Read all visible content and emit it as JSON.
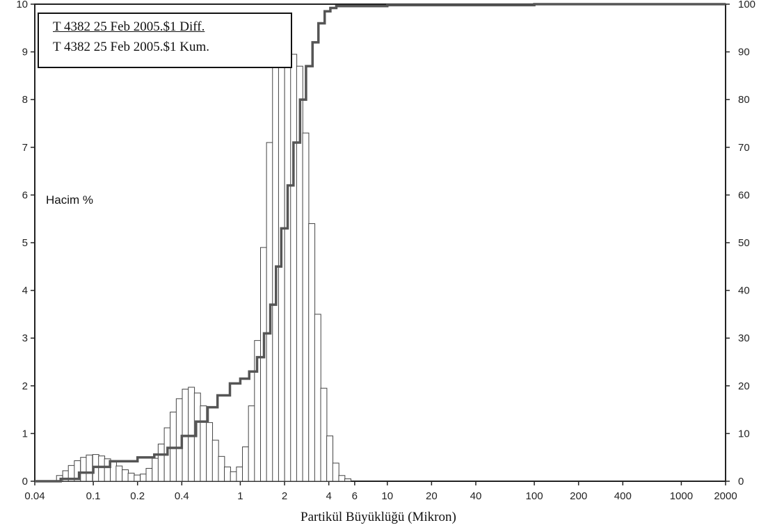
{
  "chart_data": {
    "type": "bar",
    "title": "",
    "xlabel": "Partikül Büyüklüğü (Mikron)",
    "ylabel": "Hacim %",
    "x_scale": "log",
    "xlim": [
      0.04,
      2000
    ],
    "ylim": [
      0,
      10
    ],
    "y2lim": [
      0,
      100
    ],
    "grid": false,
    "legend_position": "top-left",
    "x_ticks": [
      "0.04",
      "0.1",
      "0.2",
      "0.4",
      "1",
      "2",
      "4",
      "6",
      "10",
      "20",
      "40",
      "100",
      "200",
      "400",
      "1000",
      "2000"
    ],
    "y_ticks": [
      "0",
      "1",
      "2",
      "3",
      "4",
      "5",
      "6",
      "7",
      "8",
      "9",
      "10"
    ],
    "y2_ticks": [
      "0",
      "10",
      "20",
      "30",
      "40",
      "50",
      "60",
      "70",
      "80",
      "90",
      "100"
    ],
    "legend": [
      "T 4382 25 Feb 2005.$1 Diff.",
      "T 4382 25 Feb 2005.$1 Kum."
    ],
    "series": [
      {
        "name": "T 4382 25 Feb 2005.$1 Diff.",
        "kind": "histogram",
        "axis": "left",
        "bins": [
          {
            "x": 0.059,
            "y": 0.12
          },
          {
            "x": 0.065,
            "y": 0.22
          },
          {
            "x": 0.071,
            "y": 0.33
          },
          {
            "x": 0.078,
            "y": 0.43
          },
          {
            "x": 0.086,
            "y": 0.5
          },
          {
            "x": 0.094,
            "y": 0.55
          },
          {
            "x": 0.104,
            "y": 0.56
          },
          {
            "x": 0.114,
            "y": 0.53
          },
          {
            "x": 0.125,
            "y": 0.47
          },
          {
            "x": 0.137,
            "y": 0.4
          },
          {
            "x": 0.15,
            "y": 0.32
          },
          {
            "x": 0.165,
            "y": 0.24
          },
          {
            "x": 0.181,
            "y": 0.17
          },
          {
            "x": 0.199,
            "y": 0.13
          },
          {
            "x": 0.219,
            "y": 0.15
          },
          {
            "x": 0.24,
            "y": 0.27
          },
          {
            "x": 0.264,
            "y": 0.48
          },
          {
            "x": 0.29,
            "y": 0.78
          },
          {
            "x": 0.319,
            "y": 1.12
          },
          {
            "x": 0.35,
            "y": 1.45
          },
          {
            "x": 0.385,
            "y": 1.73
          },
          {
            "x": 0.423,
            "y": 1.93
          },
          {
            "x": 0.465,
            "y": 1.97
          },
          {
            "x": 0.511,
            "y": 1.85
          },
          {
            "x": 0.561,
            "y": 1.58
          },
          {
            "x": 0.617,
            "y": 1.23
          },
          {
            "x": 0.678,
            "y": 0.86
          },
          {
            "x": 0.745,
            "y": 0.52
          },
          {
            "x": 0.818,
            "y": 0.3
          },
          {
            "x": 0.899,
            "y": 0.2
          },
          {
            "x": 0.988,
            "y": 0.3
          },
          {
            "x": 1.086,
            "y": 0.72
          },
          {
            "x": 1.193,
            "y": 1.58
          },
          {
            "x": 1.311,
            "y": 2.95
          },
          {
            "x": 1.441,
            "y": 4.9
          },
          {
            "x": 1.583,
            "y": 7.1
          },
          {
            "x": 1.739,
            "y": 8.8
          },
          {
            "x": 1.911,
            "y": 9.0
          },
          {
            "x": 2.101,
            "y": 9.0
          },
          {
            "x": 2.308,
            "y": 8.95
          },
          {
            "x": 2.536,
            "y": 8.7
          },
          {
            "x": 2.787,
            "y": 7.3
          },
          {
            "x": 3.063,
            "y": 5.4
          },
          {
            "x": 3.365,
            "y": 3.5
          },
          {
            "x": 3.698,
            "y": 1.95
          },
          {
            "x": 4.063,
            "y": 0.95
          },
          {
            "x": 4.465,
            "y": 0.38
          },
          {
            "x": 4.906,
            "y": 0.12
          },
          {
            "x": 5.391,
            "y": 0.05
          }
        ]
      },
      {
        "name": "T 4382 25 Feb 2005.$1 Kum.",
        "kind": "cumulative",
        "axis": "right",
        "points": [
          {
            "x": 0.04,
            "y": 0
          },
          {
            "x": 0.06,
            "y": 0.5
          },
          {
            "x": 0.08,
            "y": 1.8
          },
          {
            "x": 0.1,
            "y": 3.0
          },
          {
            "x": 0.13,
            "y": 4.2
          },
          {
            "x": 0.2,
            "y": 5.0
          },
          {
            "x": 0.26,
            "y": 5.6
          },
          {
            "x": 0.32,
            "y": 7.0
          },
          {
            "x": 0.4,
            "y": 9.5
          },
          {
            "x": 0.5,
            "y": 12.5
          },
          {
            "x": 0.6,
            "y": 15.5
          },
          {
            "x": 0.7,
            "y": 18.0
          },
          {
            "x": 0.85,
            "y": 20.5
          },
          {
            "x": 1.0,
            "y": 21.5
          },
          {
            "x": 1.15,
            "y": 23.0
          },
          {
            "x": 1.3,
            "y": 26.0
          },
          {
            "x": 1.45,
            "y": 31.0
          },
          {
            "x": 1.6,
            "y": 37.0
          },
          {
            "x": 1.75,
            "y": 45.0
          },
          {
            "x": 1.9,
            "y": 53.0
          },
          {
            "x": 2.1,
            "y": 62.0
          },
          {
            "x": 2.3,
            "y": 71.0
          },
          {
            "x": 2.55,
            "y": 80.0
          },
          {
            "x": 2.8,
            "y": 87.0
          },
          {
            "x": 3.1,
            "y": 92.0
          },
          {
            "x": 3.4,
            "y": 96.0
          },
          {
            "x": 3.75,
            "y": 98.5
          },
          {
            "x": 4.1,
            "y": 99.2
          },
          {
            "x": 4.5,
            "y": 99.6
          },
          {
            "x": 10,
            "y": 99.8
          },
          {
            "x": 100,
            "y": 100
          },
          {
            "x": 2000,
            "y": 100
          }
        ]
      }
    ]
  }
}
